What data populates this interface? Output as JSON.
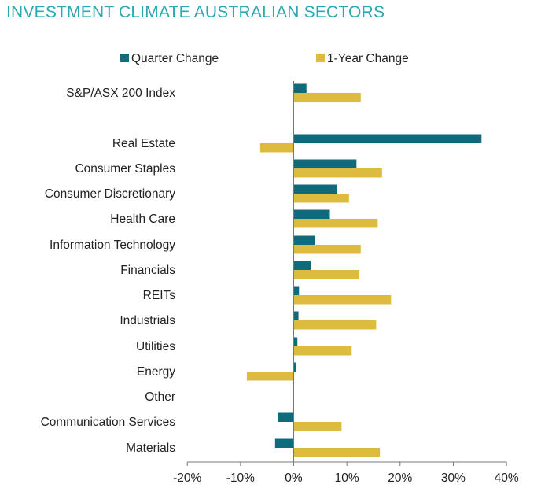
{
  "colors": {
    "title": "#2aa9b0",
    "quarter": "#0e6b7b",
    "year": "#dcbb3e",
    "axis": "#777777"
  },
  "chart_data": {
    "type": "bar",
    "orientation": "horizontal",
    "title": "INVESTMENT CLIMATE AUSTRALIAN SECTORS",
    "categories": [
      "S&P/ASX 200 Index",
      "Real Estate",
      "Consumer Staples",
      "Consumer Discretionary",
      "Health Care",
      "Information Technology",
      "Financials",
      "REITs",
      "Industrials",
      "Utilities",
      "Energy",
      "Other",
      "Communication Services",
      "Materials"
    ],
    "series": [
      {
        "name": "Quarter Change",
        "values": [
          2.4,
          35.3,
          11.8,
          8.2,
          6.8,
          4.0,
          3.2,
          1.0,
          0.9,
          0.7,
          0.4,
          null,
          -3.0,
          -3.5
        ]
      },
      {
        "name": "1-Year Change",
        "values": [
          12.6,
          -6.3,
          16.6,
          10.4,
          15.8,
          12.6,
          12.3,
          18.3,
          15.5,
          10.9,
          -8.8,
          null,
          9.0,
          16.2
        ]
      }
    ],
    "x_ticks": [
      "-20%",
      "-10%",
      "0%",
      "10%",
      "20%",
      "30%",
      "40%"
    ],
    "xlim": [
      -20,
      40
    ],
    "legend": "top",
    "grid": false
  }
}
